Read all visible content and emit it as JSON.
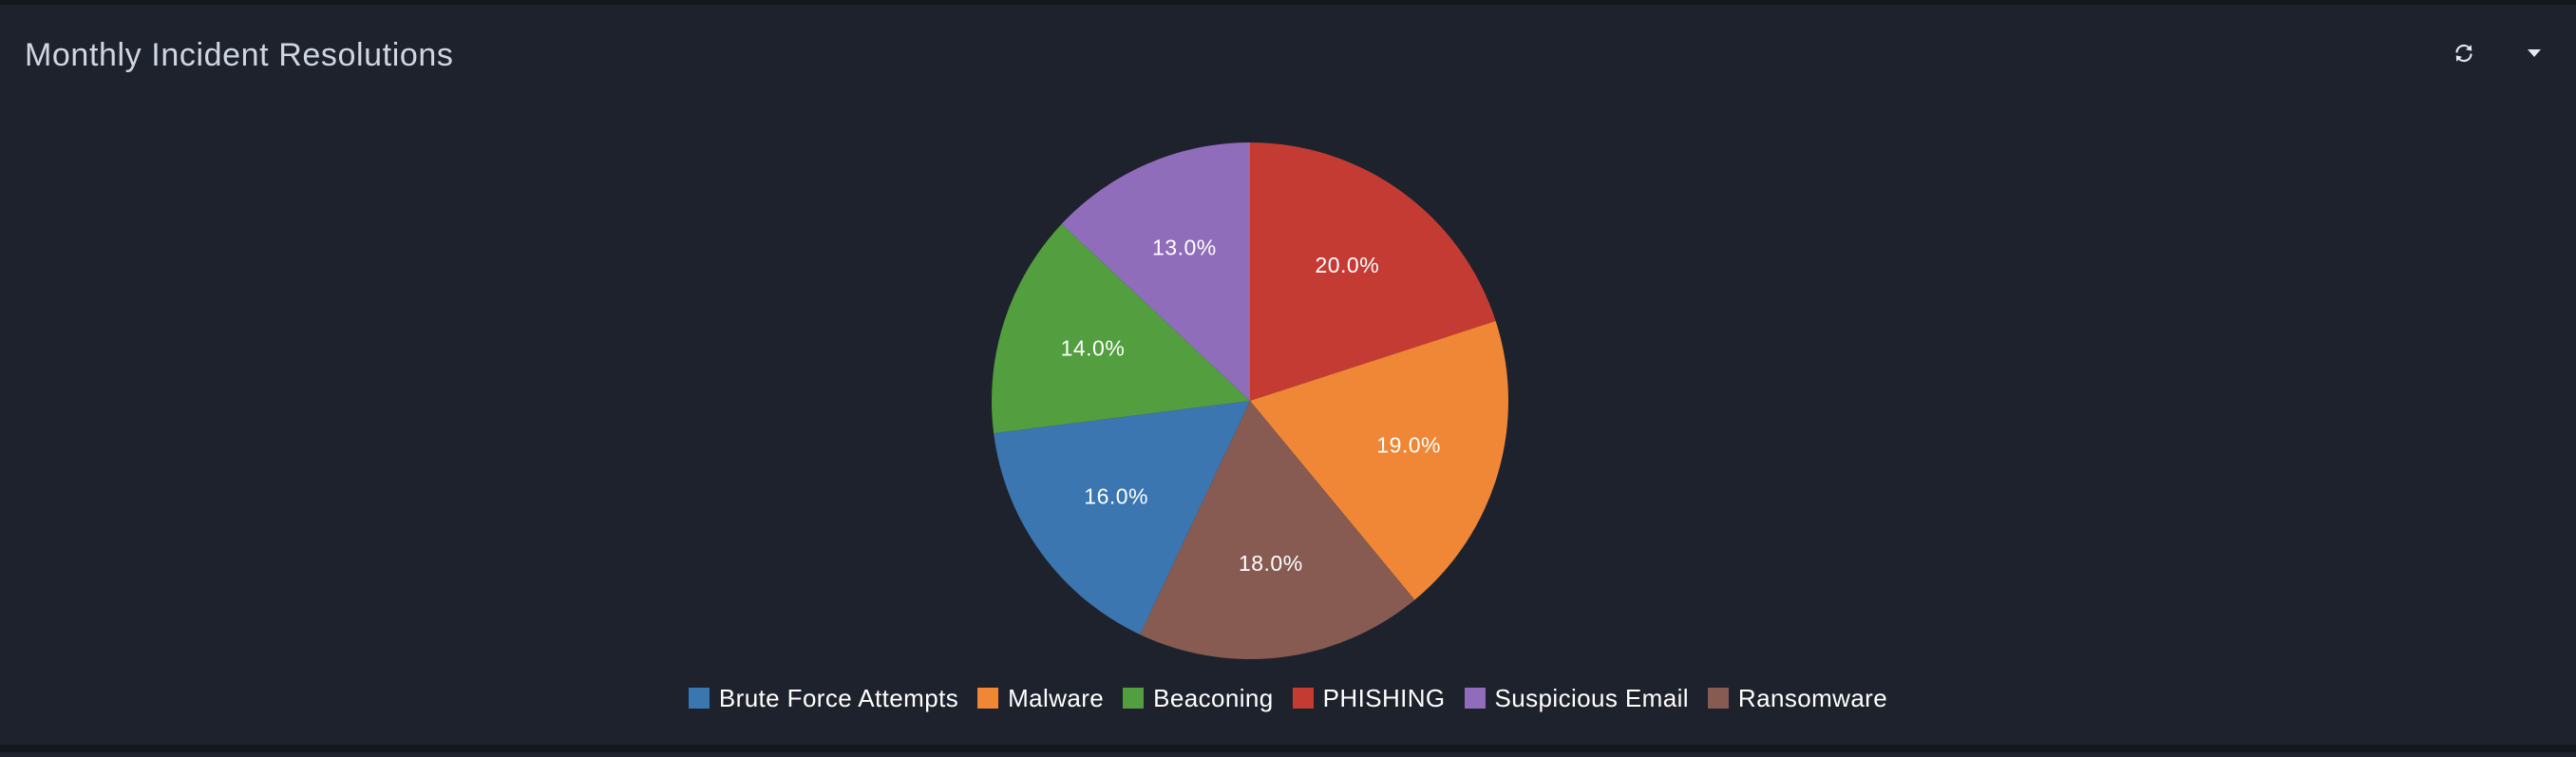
{
  "panel": {
    "title": "Monthly Incident Resolutions",
    "controls": [
      {
        "name": "refresh-icon"
      },
      {
        "name": "chevron-down-icon"
      }
    ]
  },
  "colors": {
    "background": "#1e222d",
    "title_text": "#cfd6e2",
    "label_text": "#ffffff"
  },
  "chart_data": {
    "type": "pie",
    "title": "Monthly Incident Resolutions",
    "legend_position": "bottom",
    "start_angle": "top, clockwise",
    "slices": [
      {
        "label": "PHISHING",
        "value": 20.0,
        "display": "20.0%",
        "color": "#c43b34"
      },
      {
        "label": "Malware",
        "value": 19.0,
        "display": "19.0%",
        "color": "#ef8737"
      },
      {
        "label": "Ransomware",
        "value": 18.0,
        "display": "18.0%",
        "color": "#875a52"
      },
      {
        "label": "Brute Force Attempts",
        "value": 16.0,
        "display": "16.0%",
        "color": "#3b76b1"
      },
      {
        "label": "Beaconing",
        "value": 14.0,
        "display": "14.0%",
        "color": "#539e3f"
      },
      {
        "label": "Suspicious Email",
        "value": 13.0,
        "display": "13.0%",
        "color": "#8f6dbb"
      }
    ],
    "legend": [
      {
        "label": "Brute Force Attempts",
        "color": "#3b76b1"
      },
      {
        "label": "Malware",
        "color": "#ef8737"
      },
      {
        "label": "Beaconing",
        "color": "#539e3f"
      },
      {
        "label": "PHISHING",
        "color": "#c43b34"
      },
      {
        "label": "Suspicious Email",
        "color": "#8f6dbb"
      },
      {
        "label": "Ransomware",
        "color": "#875a52"
      }
    ]
  }
}
